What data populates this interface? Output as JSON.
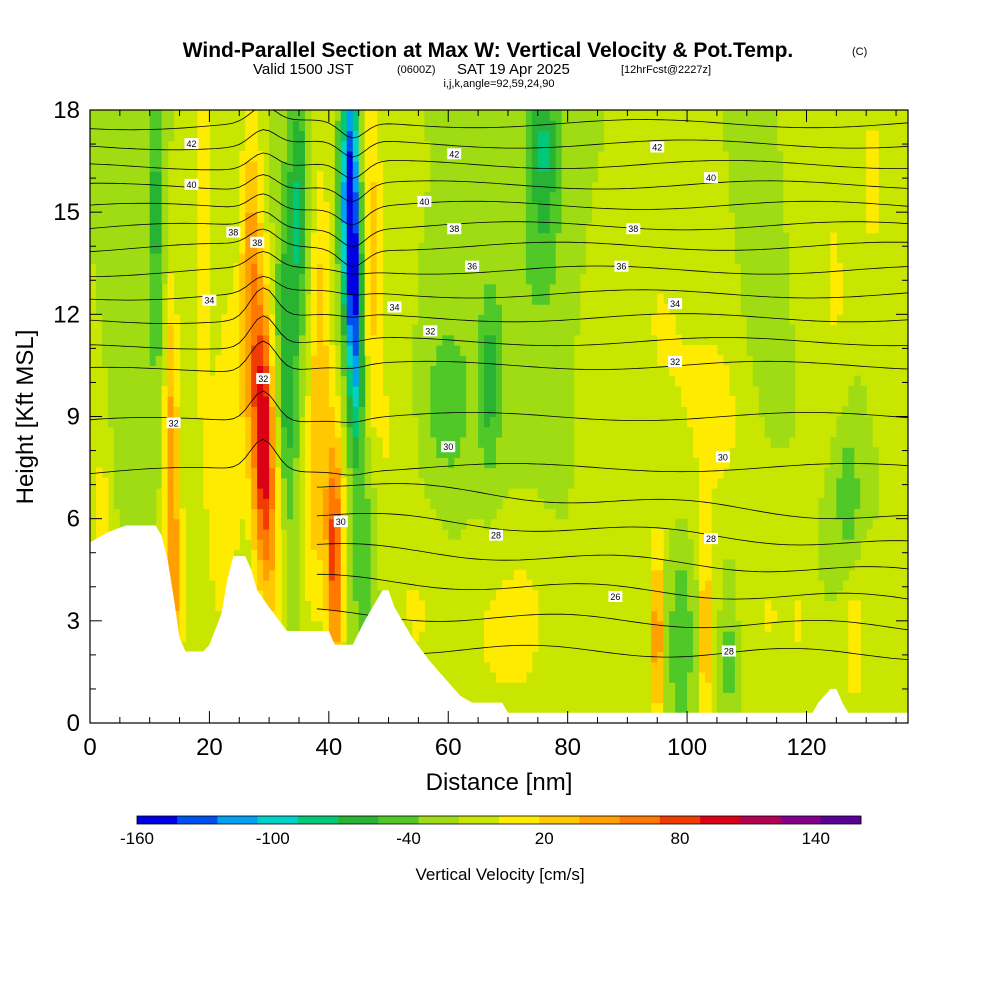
{
  "chart_data": {
    "type": "heatmap",
    "title": "Wind-Parallel Section at Max W: Vertical Velocity & Pot.Temp.",
    "title_mark": "(C)",
    "subtitle_valid": "Valid 1500 JST",
    "subtitle_utc": "(0600Z)",
    "subtitle_date": "SAT 19 Apr 2025",
    "subtitle_fcst": "[12hrFcst@2227z]",
    "subtitle_index": "i,j,k,angle=92,59,24,90",
    "xlabel": "Distance [nm]",
    "ylabel": "Height [Kft MSL]",
    "xlim": [
      0,
      137
    ],
    "ylim": [
      0,
      18
    ],
    "x_ticks": [
      "0",
      "20",
      "40",
      "60",
      "80",
      "100",
      "120"
    ],
    "x_tick_values": [
      0,
      20,
      40,
      60,
      80,
      100,
      120
    ],
    "y_ticks": [
      "0",
      "3",
      "6",
      "9",
      "12",
      "15",
      "18"
    ],
    "y_tick_values": [
      0,
      3,
      6,
      9,
      12,
      15,
      18
    ],
    "colorbar": {
      "title": "Vertical Velocity [cm/s]",
      "min": -160,
      "max": 160,
      "step": 20,
      "tick_labels": [
        "-160",
        "-100",
        "-40",
        "20",
        "80",
        "140"
      ],
      "tick_values": [
        -160,
        -100,
        -40,
        20,
        80,
        140
      ],
      "colors": [
        "#0000e6",
        "#0050f0",
        "#00a0f5",
        "#00d2c8",
        "#00c878",
        "#28b432",
        "#50c828",
        "#a0dc14",
        "#c8e600",
        "#ffeb00",
        "#ffc800",
        "#ffa000",
        "#ff7800",
        "#f03c00",
        "#dc0014",
        "#b40050",
        "#82008c",
        "#5a0096"
      ]
    },
    "theta_labels": [
      {
        "text": "42",
        "x": 17,
        "y": 17.0
      },
      {
        "text": "42",
        "x": 61,
        "y": 16.7
      },
      {
        "text": "42",
        "x": 95,
        "y": 16.9
      },
      {
        "text": "40",
        "x": 17,
        "y": 15.8
      },
      {
        "text": "40",
        "x": 56,
        "y": 15.3
      },
      {
        "text": "40",
        "x": 104,
        "y": 16.0
      },
      {
        "text": "38",
        "x": 24,
        "y": 14.4
      },
      {
        "text": "38",
        "x": 28,
        "y": 14.1
      },
      {
        "text": "38",
        "x": 61,
        "y": 14.5
      },
      {
        "text": "38",
        "x": 91,
        "y": 14.5
      },
      {
        "text": "36",
        "x": 64,
        "y": 13.4
      },
      {
        "text": "36",
        "x": 89,
        "y": 13.4
      },
      {
        "text": "34",
        "x": 20,
        "y": 12.4
      },
      {
        "text": "34",
        "x": 51,
        "y": 12.2
      },
      {
        "text": "34",
        "x": 98,
        "y": 12.3
      },
      {
        "text": "32",
        "x": 57,
        "y": 11.5
      },
      {
        "text": "32",
        "x": 29,
        "y": 10.1
      },
      {
        "text": "32",
        "x": 14,
        "y": 8.8
      },
      {
        "text": "32",
        "x": 98,
        "y": 10.6
      },
      {
        "text": "30",
        "x": 60,
        "y": 8.1
      },
      {
        "text": "30",
        "x": 106,
        "y": 7.8
      },
      {
        "text": "30",
        "x": 42,
        "y": 5.9
      },
      {
        "text": "28",
        "x": 68,
        "y": 5.5
      },
      {
        "text": "28",
        "x": 104,
        "y": 5.4
      },
      {
        "text": "28",
        "x": 107,
        "y": 2.1
      },
      {
        "text": "26",
        "x": 88,
        "y": 3.7
      }
    ]
  }
}
